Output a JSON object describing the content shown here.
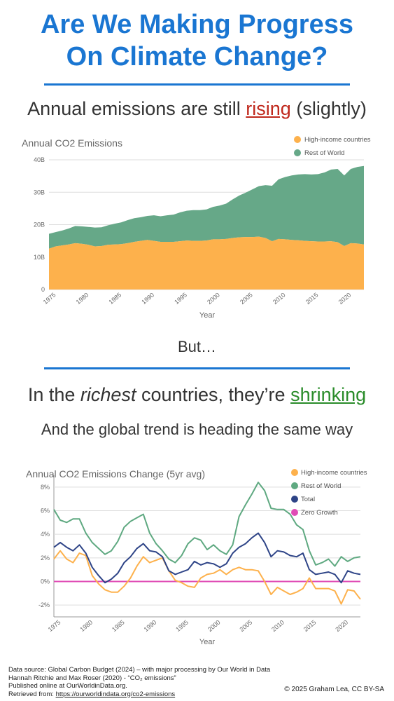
{
  "title_line1": "Are We Making Progress",
  "title_line2": "On Climate Change?",
  "headline1_pre": "Annual emissions are still ",
  "headline1_word": "rising",
  "headline1_post": " (slightly)",
  "but_text": "But…",
  "headline2_pre": "In the ",
  "headline2_em": "richest",
  "headline2_mid": " countries, they’re ",
  "headline2_word": "shrinking",
  "subheadline": "And the global trend is heading the same way",
  "footer": {
    "line1": "Data source: Global Carbon Budget (2024) – with major processing by Our World in Data",
    "line2": "Hannah Ritchie and Max Roser (2020) - “CO₂ emissions”",
    "line3": "Published online at OurWorldinData.org.",
    "line4_label": "Retrieved from: ",
    "line4_link": "https://ourworldindata.org/co2-emissions",
    "copyright": "© 2025 Graham Lea, CC BY-SA"
  },
  "chart_data": [
    {
      "type": "area",
      "stacked": true,
      "title": "Annual CO2 Emissions",
      "xlabel": "Year",
      "ylabel": "",
      "xlim": [
        1975,
        2023
      ],
      "ylim": [
        0,
        40
      ],
      "yticks": [
        "0",
        "10B",
        "20B",
        "30B",
        "40B"
      ],
      "xticks": [
        1975,
        1980,
        1985,
        1990,
        1995,
        2000,
        2005,
        2010,
        2015,
        2020
      ],
      "grid": true,
      "legend": "top-right",
      "x": [
        1975,
        1976,
        1977,
        1978,
        1979,
        1980,
        1981,
        1982,
        1983,
        1984,
        1985,
        1986,
        1987,
        1988,
        1989,
        1990,
        1991,
        1992,
        1993,
        1994,
        1995,
        1996,
        1997,
        1998,
        1999,
        2000,
        2001,
        2002,
        2003,
        2004,
        2005,
        2006,
        2007,
        2008,
        2009,
        2010,
        2011,
        2012,
        2013,
        2014,
        2015,
        2016,
        2017,
        2018,
        2019,
        2020,
        2021,
        2022,
        2023
      ],
      "series": [
        {
          "name": "High-income countries",
          "color": "#fdb14c",
          "values": [
            12.6,
            13.3,
            13.6,
            13.9,
            14.3,
            14.1,
            13.8,
            13.3,
            13.4,
            13.8,
            13.9,
            14.0,
            14.3,
            14.7,
            15.0,
            15.3,
            15.0,
            14.7,
            14.7,
            14.7,
            14.9,
            15.1,
            15.0,
            15.0,
            15.1,
            15.5,
            15.5,
            15.6,
            15.9,
            16.1,
            16.2,
            16.2,
            16.3,
            15.9,
            14.9,
            15.6,
            15.5,
            15.3,
            15.2,
            15.0,
            14.9,
            14.8,
            14.8,
            14.9,
            14.6,
            13.4,
            14.3,
            14.2,
            13.9
          ]
        },
        {
          "name": "Rest of World",
          "color": "#66a888",
          "values": [
            4.6,
            4.4,
            4.6,
            4.9,
            5.3,
            5.4,
            5.5,
            5.8,
            5.8,
            6.0,
            6.4,
            6.7,
            7.1,
            7.3,
            7.3,
            7.4,
            7.9,
            7.9,
            8.2,
            8.4,
            8.9,
            9.2,
            9.5,
            9.5,
            9.6,
            10.0,
            10.4,
            10.9,
            11.9,
            12.9,
            13.7,
            14.7,
            15.6,
            16.3,
            17.1,
            18.4,
            19.2,
            19.9,
            20.3,
            20.6,
            20.6,
            20.8,
            21.3,
            22.1,
            22.6,
            21.8,
            22.9,
            23.6,
            24.2
          ]
        }
      ]
    },
    {
      "type": "line",
      "title": "Annual CO2 Emissions Change (5yr avg)",
      "xlabel": "Year",
      "ylabel": "",
      "xlim": [
        1975,
        2023
      ],
      "ylim": [
        -3,
        9
      ],
      "yticks": [
        "-2%",
        "0%",
        "2%",
        "4%",
        "6%",
        "8%"
      ],
      "xticks": [
        1975,
        1980,
        1985,
        1990,
        1995,
        2000,
        2005,
        2010,
        2015,
        2020
      ],
      "grid": true,
      "legend": "top-right",
      "x": [
        1975,
        1976,
        1977,
        1978,
        1979,
        1980,
        1981,
        1982,
        1983,
        1984,
        1985,
        1986,
        1987,
        1988,
        1989,
        1990,
        1991,
        1992,
        1993,
        1994,
        1995,
        1996,
        1997,
        1998,
        1999,
        2000,
        2001,
        2002,
        2003,
        2004,
        2005,
        2006,
        2007,
        2008,
        2009,
        2010,
        2011,
        2012,
        2013,
        2014,
        2015,
        2016,
        2017,
        2018,
        2019,
        2020,
        2021,
        2022,
        2023
      ],
      "series": [
        {
          "name": "High-income countries",
          "color": "#fdb14c",
          "values": [
            1.9,
            2.6,
            1.9,
            1.6,
            2.4,
            2.2,
            0.5,
            -0.2,
            -0.7,
            -0.9,
            -0.9,
            -0.4,
            0.3,
            1.3,
            2.1,
            1.6,
            1.8,
            2.0,
            0.9,
            0.1,
            -0.1,
            -0.4,
            -0.5,
            0.3,
            0.6,
            0.7,
            1.0,
            0.6,
            1.0,
            1.2,
            1.0,
            1.0,
            0.9,
            0.0,
            -1.1,
            -0.5,
            -0.8,
            -1.1,
            -0.9,
            -0.6,
            0.3,
            -0.6,
            -0.6,
            -0.6,
            -0.8,
            -1.9,
            -0.7,
            -0.8,
            -1.5
          ]
        },
        {
          "name": "Rest of World",
          "color": "#5fa981",
          "values": [
            6.1,
            5.2,
            5.0,
            5.3,
            5.3,
            4.1,
            3.3,
            2.8,
            2.3,
            2.6,
            3.4,
            4.6,
            5.1,
            5.4,
            5.7,
            4.1,
            3.2,
            2.6,
            1.9,
            1.6,
            2.2,
            3.2,
            3.7,
            3.5,
            2.7,
            3.1,
            2.6,
            2.3,
            3.1,
            5.5,
            6.5,
            7.4,
            8.4,
            7.7,
            6.2,
            6.1,
            6.1,
            5.7,
            4.8,
            4.4,
            2.6,
            1.4,
            1.6,
            1.9,
            1.3,
            2.1,
            1.7,
            2.0,
            2.1
          ]
        },
        {
          "name": "Total",
          "color": "#2e4487",
          "values": [
            2.9,
            3.3,
            2.9,
            2.6,
            3.1,
            2.4,
            1.2,
            0.5,
            -0.1,
            0.2,
            0.7,
            1.6,
            2.1,
            2.8,
            3.2,
            2.6,
            2.5,
            2.1,
            0.9,
            0.6,
            0.8,
            1.0,
            1.7,
            1.4,
            1.6,
            1.5,
            1.2,
            1.5,
            2.4,
            2.9,
            3.2,
            3.7,
            4.1,
            3.3,
            2.1,
            2.6,
            2.5,
            2.2,
            2.1,
            2.4,
            1.0,
            0.6,
            0.7,
            0.8,
            0.6,
            -0.1,
            0.9,
            0.7,
            0.6
          ]
        },
        {
          "name": "Zero Growth",
          "color": "#e04bb5",
          "values": [
            0,
            0,
            0,
            0,
            0,
            0,
            0,
            0,
            0,
            0,
            0,
            0,
            0,
            0,
            0,
            0,
            0,
            0,
            0,
            0,
            0,
            0,
            0,
            0,
            0,
            0,
            0,
            0,
            0,
            0,
            0,
            0,
            0,
            0,
            0,
            0,
            0,
            0,
            0,
            0,
            0,
            0,
            0,
            0,
            0,
            0,
            0,
            0,
            0
          ]
        }
      ]
    }
  ]
}
